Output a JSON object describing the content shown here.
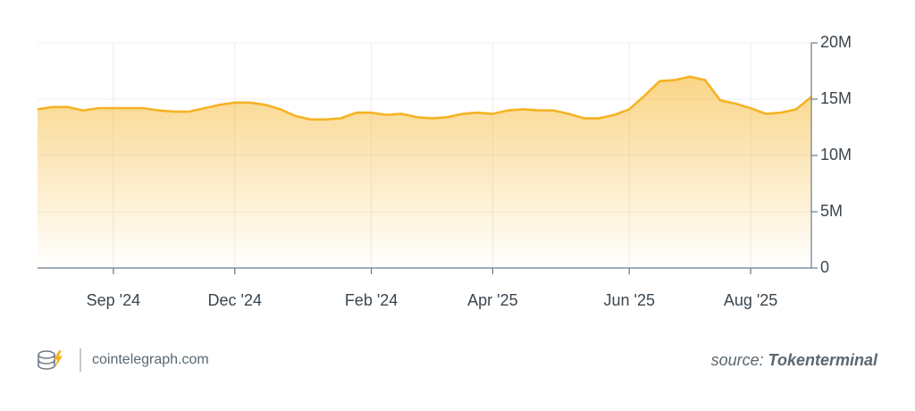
{
  "chart_data": {
    "type": "area",
    "categories": [
      null,
      null,
      null,
      null,
      null,
      "Sep '24",
      null,
      null,
      null,
      null,
      null,
      null,
      null,
      "Dec '24",
      null,
      null,
      null,
      null,
      null,
      null,
      null,
      null,
      "Feb '24",
      null,
      null,
      null,
      null,
      null,
      null,
      null,
      "Apr '25",
      null,
      null,
      null,
      null,
      null,
      null,
      null,
      null,
      "Jun '25",
      null,
      null,
      null,
      null,
      null,
      null,
      null,
      "Aug '25",
      null,
      null,
      null,
      null
    ],
    "values": [
      14.1,
      14.3,
      14.3,
      14.0,
      14.2,
      14.2,
      14.2,
      14.2,
      14.0,
      13.9,
      13.9,
      14.2,
      14.5,
      14.7,
      14.7,
      14.5,
      14.1,
      13.5,
      13.2,
      13.2,
      13.3,
      13.8,
      13.8,
      13.6,
      13.7,
      13.4,
      13.3,
      13.4,
      13.7,
      13.8,
      13.7,
      14.0,
      14.1,
      14.0,
      14.0,
      13.7,
      13.3,
      13.3,
      13.6,
      14.1,
      15.3,
      16.6,
      16.7,
      17.0,
      16.7,
      14.9,
      14.6,
      14.2,
      13.7,
      13.8,
      14.1,
      15.2
    ],
    "color": "#f5b324",
    "ylim": [
      0,
      20
    ],
    "yticks": [
      {
        "value": 0,
        "label": "0"
      },
      {
        "value": 5,
        "label": "5M"
      },
      {
        "value": 10,
        "label": "10M"
      },
      {
        "value": 15,
        "label": "15M"
      },
      {
        "value": 20,
        "label": "20M"
      }
    ],
    "grid": true
  },
  "footer": {
    "site": "cointelegraph.com",
    "source_prefix": "source:",
    "source": "Tokenterminal"
  }
}
